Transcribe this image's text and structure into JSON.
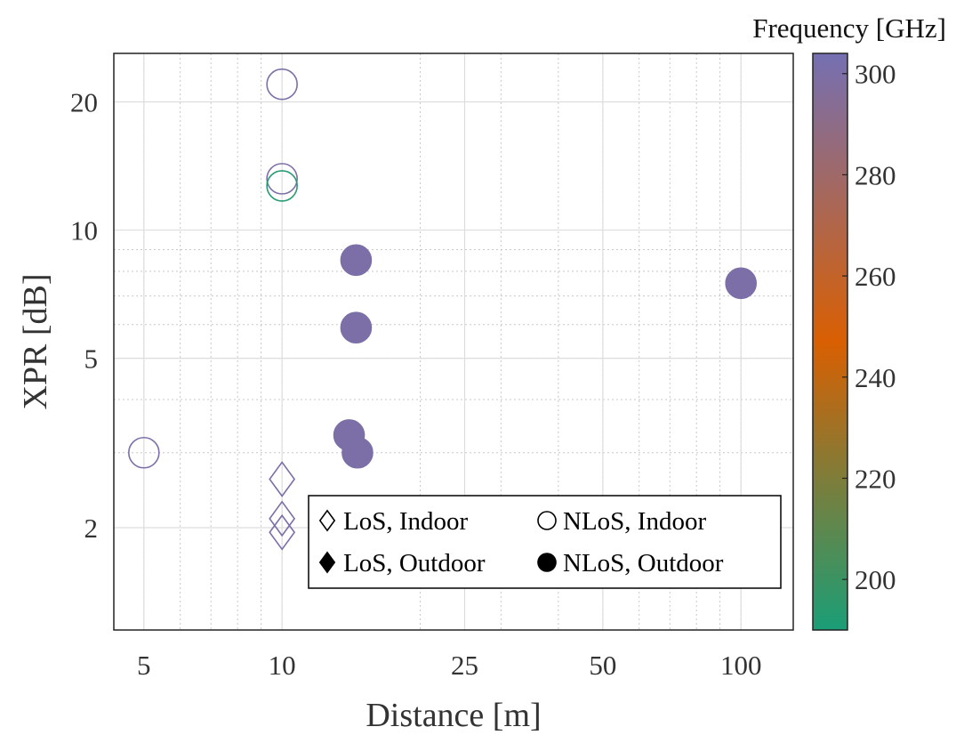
{
  "chart_data": {
    "type": "scatter",
    "xlabel": "Distance [m]",
    "ylabel": "XPR [dB]",
    "x_scale": "log",
    "y_scale": "log",
    "xlim": [
      4.3,
      130
    ],
    "ylim": [
      1.15,
      26
    ],
    "x_ticks": [
      5,
      10,
      25,
      50,
      100
    ],
    "y_ticks": [
      2,
      5,
      10,
      20
    ],
    "grid": true,
    "legend_position": "bottom-right",
    "legend": [
      {
        "label": "LoS, Indoor",
        "marker": "diamond",
        "filled": false
      },
      {
        "label": "NLoS, Indoor",
        "marker": "circle",
        "filled": false
      },
      {
        "label": "LoS, Outdoor",
        "marker": "diamond",
        "filled": true
      },
      {
        "label": "NLoS, Outdoor",
        "marker": "circle",
        "filled": true
      }
    ],
    "colorbar": {
      "title": "Frequency [GHz]",
      "range": [
        190,
        304
      ],
      "ticks": [
        200,
        220,
        240,
        260,
        280,
        300
      ],
      "colors": [
        "#1a9e77",
        "#d95f02",
        "#7570b3"
      ]
    },
    "points": [
      {
        "group": "NLoS, Indoor",
        "x": 10,
        "y": 22,
        "freq": 300
      },
      {
        "group": "NLoS, Indoor",
        "x": 10,
        "y": 13.2,
        "freq": 300
      },
      {
        "group": "NLoS, Indoor",
        "x": 10,
        "y": 12.7,
        "freq": 193
      },
      {
        "group": "NLoS, Indoor",
        "x": 5,
        "y": 3.0,
        "freq": 300
      },
      {
        "group": "LoS, Indoor",
        "x": 10,
        "y": 2.6,
        "freq": 300
      },
      {
        "group": "LoS, Indoor",
        "x": 10,
        "y": 2.1,
        "freq": 300
      },
      {
        "group": "LoS, Indoor",
        "x": 10,
        "y": 1.95,
        "freq": 300
      },
      {
        "group": "NLoS, Outdoor",
        "x": 14.5,
        "y": 8.5,
        "freq": 300
      },
      {
        "group": "NLoS, Outdoor",
        "x": 14.5,
        "y": 5.9,
        "freq": 300
      },
      {
        "group": "NLoS, Outdoor",
        "x": 14.0,
        "y": 3.3,
        "freq": 300
      },
      {
        "group": "NLoS, Outdoor",
        "x": 14.6,
        "y": 3.0,
        "freq": 300
      },
      {
        "group": "NLoS, Outdoor",
        "x": 100,
        "y": 7.5,
        "freq": 300
      }
    ]
  }
}
